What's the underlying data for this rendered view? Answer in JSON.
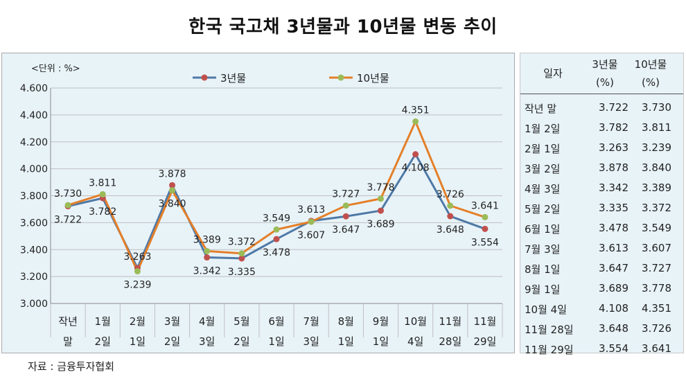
{
  "title": "한국 국고채 3년물과 10년물 변동 추이",
  "source": "자료 : 금융투자협회",
  "chart_data": {
    "type": "line",
    "unit_label": "<단위 : %>",
    "categories": [
      [
        "작년",
        "말"
      ],
      [
        "1월",
        "2일"
      ],
      [
        "2월",
        "1일"
      ],
      [
        "3월",
        "2일"
      ],
      [
        "4월",
        "3일"
      ],
      [
        "5월",
        "2일"
      ],
      [
        "6월",
        "1일"
      ],
      [
        "7월",
        "3일"
      ],
      [
        "8월",
        "1일"
      ],
      [
        "9월",
        "1일"
      ],
      [
        "10월",
        "4일"
      ],
      [
        "11월",
        "28일"
      ],
      [
        "11월",
        "29일"
      ]
    ],
    "ylim": [
      3.0,
      4.6
    ],
    "yticks": [
      "3.000",
      "3.200",
      "3.400",
      "3.600",
      "3.800",
      "4.000",
      "4.200",
      "4.400",
      "4.600"
    ],
    "grid": true,
    "legend_position": "top",
    "series": [
      {
        "name": "3년물",
        "line_color": "#4f79a6",
        "marker_color": "#c0504d",
        "values": [
          3.722,
          3.782,
          3.263,
          3.878,
          3.342,
          3.335,
          3.478,
          3.613,
          3.647,
          3.689,
          4.108,
          3.648,
          3.554
        ],
        "labels": [
          "3.722",
          "3.782",
          "3.263",
          "3.878",
          "3.342",
          "3.335",
          "3.478",
          "3.613",
          "3.647",
          "3.689",
          "4.108",
          "3.648",
          "3.554"
        ]
      },
      {
        "name": "10년물",
        "line_color": "#e47f28",
        "marker_color": "#9bbb59",
        "values": [
          3.73,
          3.811,
          3.239,
          3.84,
          3.389,
          3.372,
          3.549,
          3.607,
          3.727,
          3.778,
          4.351,
          3.726,
          3.641
        ],
        "labels": [
          "3.730",
          "3.811",
          "3.239",
          "3.840",
          "3.389",
          "3.372",
          "3.549",
          "3.607",
          "3.727",
          "3.778",
          "4.351",
          "3.726",
          "3.641"
        ]
      }
    ]
  },
  "table": {
    "headers": {
      "date": "일자",
      "col3_line1": "3년물",
      "col3_line2": "(%)",
      "col10_line1": "10년물",
      "col10_line2": "(%)"
    },
    "rows": [
      {
        "date": "작년 말",
        "v3": "3.722",
        "v10": "3.730"
      },
      {
        "date": "1월  2일",
        "v3": "3.782",
        "v10": "3.811"
      },
      {
        "date": "2월  1일",
        "v3": "3.263",
        "v10": "3.239"
      },
      {
        "date": "3월  2일",
        "v3": "3.878",
        "v10": "3.840"
      },
      {
        "date": "4월  3일",
        "v3": "3.342",
        "v10": "3.389"
      },
      {
        "date": "5월  2일",
        "v3": "3.335",
        "v10": "3.372"
      },
      {
        "date": "6월  1일",
        "v3": "3.478",
        "v10": "3.549"
      },
      {
        "date": "7월  3일",
        "v3": "3.613",
        "v10": "3.607"
      },
      {
        "date": "8월  1일",
        "v3": "3.647",
        "v10": "3.727"
      },
      {
        "date": "9월 1일",
        "v3": "3.689",
        "v10": "3.778"
      },
      {
        "date": "10월 4일",
        "v3": "4.108",
        "v10": "4.351"
      },
      {
        "date": "11월 28일",
        "v3": "3.648",
        "v10": "3.726"
      },
      {
        "date": "11월 29일",
        "v3": "3.554",
        "v10": "3.641"
      }
    ]
  }
}
